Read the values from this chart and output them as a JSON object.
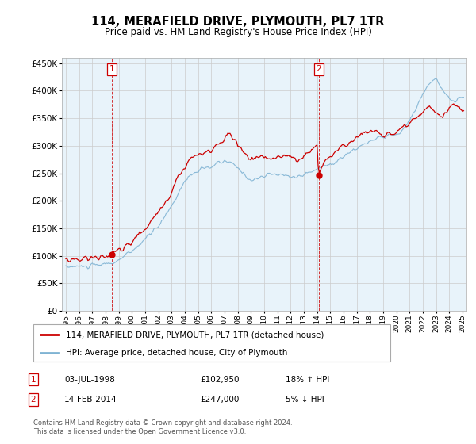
{
  "title": "114, MERAFIELD DRIVE, PLYMOUTH, PL7 1TR",
  "subtitle": "Price paid vs. HM Land Registry's House Price Index (HPI)",
  "legend_line1": "114, MERAFIELD DRIVE, PLYMOUTH, PL7 1TR (detached house)",
  "legend_line2": "HPI: Average price, detached house, City of Plymouth",
  "footnote": "Contains HM Land Registry data © Crown copyright and database right 2024.\nThis data is licensed under the Open Government Licence v3.0.",
  "sale1_label": "1",
  "sale1_date": "03-JUL-1998",
  "sale1_price": "£102,950",
  "sale1_hpi": "18% ↑ HPI",
  "sale2_label": "2",
  "sale2_date": "14-FEB-2014",
  "sale2_price": "£247,000",
  "sale2_hpi": "5% ↓ HPI",
  "sale1_x": 1998.5,
  "sale1_y": 102950,
  "sale2_x": 2014.12,
  "sale2_y": 247000,
  "ylim": [
    0,
    460000
  ],
  "xlim": [
    1994.7,
    2025.3
  ],
  "red_color": "#cc0000",
  "blue_color": "#7fb3d3",
  "blue_fill_color": "#ddeef7",
  "background_color": "#ffffff",
  "grid_color": "#cccccc",
  "plot_bg_color": "#e8f3fa"
}
